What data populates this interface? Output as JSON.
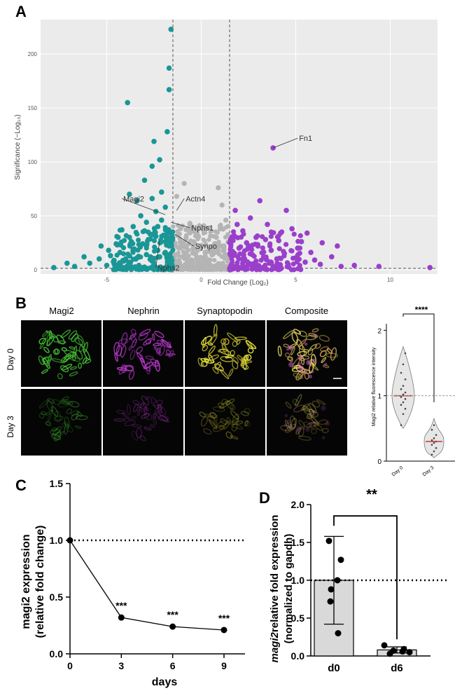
{
  "panels": {
    "a": "A",
    "b": "B",
    "c": "C",
    "d": "D"
  },
  "chart_data": [
    {
      "id": "A",
      "type": "scatter",
      "xlabel": "Fold Change (Log₂)",
      "ylabel": "Significance (−Log₁₀)",
      "xlim": [
        -8.5,
        12.5
      ],
      "ylim": [
        -4,
        232
      ],
      "xticks": [
        -5,
        0,
        5,
        10
      ],
      "yticks": [
        0,
        50,
        100,
        150,
        200
      ],
      "thresholds": {
        "x": [
          -1.5,
          1.5
        ],
        "y": 1.3
      },
      "colors": {
        "down": "#1a9696",
        "ns": "#b4b4b4",
        "up": "#9a3fcb"
      },
      "labels": [
        {
          "text": "Fn1",
          "x": 3.8,
          "y": 113,
          "tx": 5.1,
          "ty": 122
        },
        {
          "text": "Magi2",
          "x": -1.9,
          "y": 51,
          "tx": -4.2,
          "ty": 66
        },
        {
          "text": "Actn4",
          "x": -1.3,
          "y": 55,
          "tx": -0.9,
          "ty": 66
        },
        {
          "text": "Nphs1",
          "x": -1.6,
          "y": 44,
          "tx": -0.6,
          "ty": 39
        },
        {
          "text": "Synpo",
          "x": -1.4,
          "y": 33,
          "tx": -0.4,
          "ty": 22
        },
        {
          "text": "Nphs2",
          "x": -2.2,
          "y": 27,
          "tx": -2.4,
          "ty": 2
        }
      ],
      "points_down": [
        [
          -1.6,
          223
        ],
        [
          -1.7,
          187
        ],
        [
          -1.7,
          167
        ],
        [
          -1.8,
          128
        ],
        [
          -3.9,
          155
        ],
        [
          -3.8,
          70
        ],
        [
          -2.5,
          119
        ],
        [
          -2.6,
          96
        ],
        [
          -2.2,
          102
        ],
        [
          -3,
          83
        ],
        [
          -2.1,
          72
        ],
        [
          -3.4,
          64
        ],
        [
          -2.6,
          66
        ],
        [
          -1.9,
          58
        ],
        [
          -2.4,
          54
        ],
        [
          -3.2,
          50
        ],
        [
          -2.9,
          44
        ],
        [
          -3.6,
          40
        ],
        [
          -4.2,
          37
        ],
        [
          -2.3,
          40
        ],
        [
          -1.8,
          35
        ],
        [
          -2.7,
          33
        ],
        [
          -3.8,
          30
        ],
        [
          -4.5,
          24
        ],
        [
          -5.3,
          22
        ],
        [
          -4.9,
          18
        ],
        [
          -6.2,
          12
        ],
        [
          -7.1,
          6
        ],
        [
          -7.8,
          2
        ],
        [
          -6.7,
          3
        ],
        [
          -5.9,
          6
        ],
        [
          -5.4,
          10
        ],
        [
          -4.8,
          13
        ],
        [
          -4.3,
          16
        ],
        [
          -3.6,
          19
        ],
        [
          -3.1,
          24
        ],
        [
          -2.8,
          28
        ],
        [
          -2.4,
          31
        ],
        [
          -2.1,
          26
        ],
        [
          -1.7,
          22
        ],
        [
          -1.9,
          16
        ],
        [
          -2.2,
          12
        ],
        [
          -2.6,
          8
        ],
        [
          -3.3,
          4
        ],
        [
          -4,
          2
        ],
        [
          -5,
          4
        ],
        [
          -1.6,
          8
        ],
        [
          -1.8,
          4
        ],
        [
          -2.9,
          14
        ],
        [
          -3.4,
          11
        ],
        [
          -4.1,
          8
        ],
        [
          -4.6,
          5
        ],
        [
          -2.3,
          18
        ],
        [
          -2,
          32
        ],
        [
          -2.9,
          22
        ],
        [
          -3.7,
          26
        ],
        [
          -1.6,
          28
        ],
        [
          -2.1,
          46
        ],
        [
          -3.0,
          36
        ],
        [
          -4.4,
          30
        ]
      ],
      "points_ns": [
        [
          -1.3,
          68
        ],
        [
          -0.9,
          80
        ],
        [
          -0.6,
          43
        ],
        [
          -1.1,
          38
        ],
        [
          -0.8,
          30
        ],
        [
          -0.4,
          26
        ],
        [
          -1.2,
          20
        ],
        [
          -0.7,
          18
        ],
        [
          -0.3,
          14
        ],
        [
          -1.0,
          12
        ],
        [
          -0.5,
          9
        ],
        [
          -0.2,
          7
        ],
        [
          0.1,
          6
        ],
        [
          0.3,
          10
        ],
        [
          0.6,
          14
        ],
        [
          0.9,
          18
        ],
        [
          1.2,
          22
        ],
        [
          0.8,
          30
        ],
        [
          1.0,
          38
        ],
        [
          1.3,
          46
        ],
        [
          1.1,
          60
        ],
        [
          0.9,
          76
        ],
        [
          0.5,
          4
        ],
        [
          -0.1,
          3
        ],
        [
          -0.8,
          5
        ],
        [
          -1.3,
          6
        ],
        [
          1.4,
          8
        ],
        [
          0.2,
          16
        ],
        [
          -0.4,
          20
        ],
        [
          0.7,
          24
        ],
        [
          -1.4,
          14
        ],
        [
          1.2,
          12
        ],
        [
          0.4,
          3
        ],
        [
          -0.6,
          2
        ],
        [
          1.0,
          5
        ],
        [
          -1.1,
          3
        ]
      ],
      "points_up": [
        [
          3.8,
          113
        ],
        [
          3.1,
          64
        ],
        [
          4.5,
          55
        ],
        [
          2.6,
          48
        ],
        [
          3.5,
          42
        ],
        [
          4.8,
          38
        ],
        [
          5.6,
          34
        ],
        [
          2.2,
          36
        ],
        [
          1.8,
          55
        ],
        [
          1.7,
          30
        ],
        [
          2.9,
          30
        ],
        [
          4.1,
          27
        ],
        [
          6.4,
          25
        ],
        [
          7.2,
          22
        ],
        [
          6.9,
          12
        ],
        [
          5.8,
          16
        ],
        [
          5.1,
          20
        ],
        [
          4.4,
          15
        ],
        [
          3.7,
          18
        ],
        [
          3.0,
          22
        ],
        [
          2.4,
          25
        ],
        [
          2.0,
          20
        ],
        [
          1.7,
          14
        ],
        [
          2.2,
          10
        ],
        [
          2.9,
          8
        ],
        [
          3.6,
          6
        ],
        [
          4.6,
          5
        ],
        [
          5.5,
          7
        ],
        [
          6.3,
          5
        ],
        [
          7.4,
          3
        ],
        [
          8.1,
          4
        ],
        [
          9.4,
          3
        ],
        [
          12.1,
          2
        ],
        [
          4.0,
          10
        ],
        [
          3.3,
          12
        ],
        [
          2.7,
          14
        ],
        [
          5.0,
          11
        ],
        [
          6.0,
          9
        ],
        [
          1.9,
          42
        ],
        [
          4.2,
          34
        ],
        [
          3.4,
          28
        ],
        [
          5.3,
          26
        ]
      ]
    },
    {
      "id": "B-images",
      "type": "image-grid",
      "columns": [
        "Magi2",
        "Nephrin",
        "Synaptopodin",
        "Composite"
      ],
      "rows": [
        "Day 0",
        "Day 3"
      ]
    },
    {
      "id": "B-violin",
      "type": "violin",
      "categories": [
        "Day 0",
        "Day 3"
      ],
      "ylabel": "Magi2 relative fluorescence intensity",
      "ylim": [
        0,
        2.1
      ],
      "yticks": [
        "0",
        "1",
        "2"
      ],
      "medians": [
        1.0,
        0.3
      ],
      "reference": 1.0,
      "significance": "****",
      "points": [
        [
          0.55,
          0.72,
          0.8,
          0.86,
          0.9,
          0.95,
          0.98,
          1.02,
          1.05,
          1.1,
          1.15,
          1.25,
          1.35,
          1.48,
          1.65
        ],
        [
          0.1,
          0.15,
          0.2,
          0.25,
          0.28,
          0.3,
          0.32,
          0.35,
          0.4,
          0.48,
          0.55
        ]
      ]
    },
    {
      "id": "C",
      "type": "line",
      "x": [
        0,
        3,
        6,
        9
      ],
      "values": [
        1.0,
        0.32,
        0.24,
        0.21
      ],
      "annotations": [
        "",
        "***",
        "***",
        "***"
      ],
      "xlabel": "days",
      "ylabel": "magi2 expression",
      "ylabel2": "(relative fold change)",
      "xticks": [
        "0",
        "3",
        "6",
        "9"
      ],
      "yticks": [
        "0.0",
        "0.5",
        "1.0",
        "1.5"
      ],
      "ylim": [
        0,
        1.5
      ],
      "reference": 1.0
    },
    {
      "id": "D",
      "type": "bar",
      "categories": [
        "d0",
        "d6"
      ],
      "values": [
        1.0,
        0.08
      ],
      "errors": [
        0.58,
        0.04
      ],
      "points": [
        [
          1.52,
          1.27,
          1.0,
          0.88,
          0.72,
          0.3
        ],
        [
          0.14,
          0.09,
          0.07,
          0.06,
          0.05,
          0.03
        ]
      ],
      "ylabel_italic": "magi2",
      "ylabel_rest": "relative fold expression",
      "ylabel2": "(normalized to gapdh)",
      "yticks": [
        "0.0",
        "0.5",
        "1.0",
        "1.5",
        "2.0"
      ],
      "ylim": [
        0,
        2.0
      ],
      "reference": 1.0,
      "significance": "**"
    }
  ]
}
